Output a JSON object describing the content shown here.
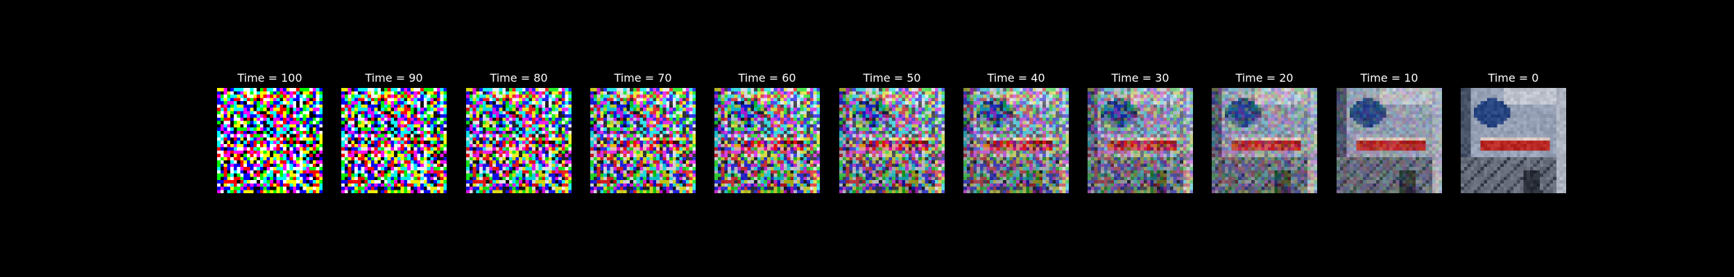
{
  "figure": {
    "background": "#000000",
    "panels": [
      {
        "title": "Time = 100",
        "noise_level": 1.0
      },
      {
        "title": "Time = 90",
        "noise_level": 0.9
      },
      {
        "title": "Time = 80",
        "noise_level": 0.8
      },
      {
        "title": "Time = 70",
        "noise_level": 0.7
      },
      {
        "title": "Time = 60",
        "noise_level": 0.6
      },
      {
        "title": "Time = 50",
        "noise_level": 0.5
      },
      {
        "title": "Time = 40",
        "noise_level": 0.4
      },
      {
        "title": "Time = 30",
        "noise_level": 0.3
      },
      {
        "title": "Time = 20",
        "noise_level": 0.2
      },
      {
        "title": "Time = 10",
        "noise_level": 0.1
      },
      {
        "title": "Time = 0",
        "noise_level": 0.0
      }
    ]
  }
}
